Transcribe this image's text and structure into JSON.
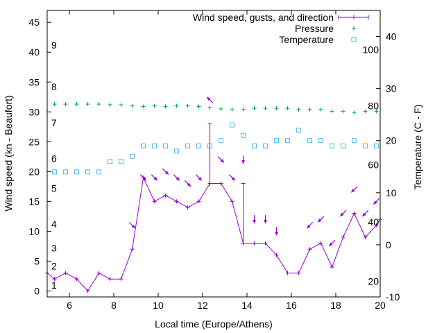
{
  "chart_data": {
    "type": "line",
    "xlabel": "Local time (Europe/Athens)",
    "ylabel": "Wind speed (kn - Beaufort)",
    "y2label": "Temperature (C - F)",
    "xlim": [
      5,
      20
    ],
    "ylim": [
      -1,
      47
    ],
    "y2lim": [
      -10,
      45
    ],
    "x_ticks": [
      6,
      8,
      10,
      12,
      14,
      16,
      18,
      20
    ],
    "y_ticks": [
      0,
      5,
      10,
      15,
      20,
      25,
      30,
      35,
      40,
      45
    ],
    "y2_ticks": [
      -10,
      0,
      10,
      20,
      30,
      40
    ],
    "beaufort_labels": [
      {
        "value": "1",
        "y": 1
      },
      {
        "value": "2",
        "y": 4.2
      },
      {
        "value": "3",
        "y": 7.2
      },
      {
        "value": "4",
        "y": 11.2
      },
      {
        "value": "5",
        "y": 17.2
      },
      {
        "value": "6",
        "y": 22.2
      },
      {
        "value": "7",
        "y": 28.2
      },
      {
        "value": "8",
        "y": 34.2
      },
      {
        "value": "9",
        "y": 41.2
      }
    ],
    "fahrenheit_labels": [
      {
        "value": "20",
        "y2": -7
      },
      {
        "value": "40",
        "y2": 4.4
      },
      {
        "value": "60",
        "y2": 15.4
      },
      {
        "value": "80",
        "y2": 26.7
      },
      {
        "value": "100",
        "y2": 37.5
      }
    ],
    "colors": {
      "wind": "#9400d3",
      "pressure": "#009e73",
      "temperature": "#56b4e9"
    },
    "series": [
      {
        "name": "Wind speed, gusts, and direction",
        "x": [
          5,
          5.33,
          5.83,
          6.33,
          6.83,
          7.33,
          7.83,
          8.33,
          8.83,
          9.33,
          9.83,
          10.33,
          10.83,
          11.33,
          11.83,
          12.33,
          12.83,
          13.33,
          13.83,
          14.33,
          14.83,
          15.33,
          15.83,
          16.33,
          16.83,
          17.33,
          17.83,
          18.33,
          18.83,
          19.33,
          19.83,
          20
        ],
        "y": [
          3,
          2,
          3,
          2,
          0,
          3,
          2,
          2,
          7,
          19,
          15,
          16,
          15,
          14,
          15,
          18,
          18,
          15,
          8,
          8,
          8,
          6,
          3,
          3,
          7,
          8,
          4,
          9,
          13,
          9,
          11,
          12
        ],
        "gusts": [
          {
            "x": 12.33,
            "low": 18,
            "high": 28
          },
          {
            "x": 13.83,
            "low": 8,
            "high": 18
          }
        ],
        "direction_arrows": [
          {
            "x": 8.83,
            "y": 11,
            "dir": "down-right"
          },
          {
            "x": 9.33,
            "y": 19,
            "dir": "down-right"
          },
          {
            "x": 9.83,
            "y": 19,
            "dir": "down-right"
          },
          {
            "x": 10.33,
            "y": 20,
            "dir": "down-right"
          },
          {
            "x": 10.83,
            "y": 19,
            "dir": "down-right"
          },
          {
            "x": 11.33,
            "y": 18,
            "dir": "down-right"
          },
          {
            "x": 11.83,
            "y": 19,
            "dir": "down-right"
          },
          {
            "x": 12.33,
            "y": 32,
            "dir": "up-left"
          },
          {
            "x": 12.83,
            "y": 22,
            "dir": "down-right"
          },
          {
            "x": 13.33,
            "y": 19,
            "dir": "down-right"
          },
          {
            "x": 13.83,
            "y": 22,
            "dir": "down"
          },
          {
            "x": 14.33,
            "y": 12,
            "dir": "down"
          },
          {
            "x": 14.83,
            "y": 12,
            "dir": "down"
          },
          {
            "x": 15.33,
            "y": 10,
            "dir": "down"
          },
          {
            "x": 16.83,
            "y": 11,
            "dir": "down-left"
          },
          {
            "x": 17.33,
            "y": 12,
            "dir": "down-left"
          },
          {
            "x": 17.83,
            "y": 8,
            "dir": "down-left"
          },
          {
            "x": 18.33,
            "y": 13,
            "dir": "down-left"
          },
          {
            "x": 18.83,
            "y": 17,
            "dir": "down-left"
          },
          {
            "x": 19.33,
            "y": 13,
            "dir": "down-left"
          },
          {
            "x": 19.83,
            "y": 15,
            "dir": "down-left"
          }
        ]
      },
      {
        "name": "Pressure",
        "x": [
          5.33,
          5.83,
          6.33,
          6.83,
          7.33,
          7.83,
          8.33,
          8.83,
          9.33,
          9.83,
          10.33,
          10.83,
          11.33,
          11.83,
          12.33,
          12.83,
          13.33,
          13.83,
          14.33,
          14.83,
          15.33,
          15.83,
          16.33,
          16.83,
          17.33,
          17.83,
          18.33,
          18.83,
          19.33,
          19.83
        ],
        "y": [
          31.3,
          31.3,
          31.3,
          31.3,
          31.3,
          31.2,
          31.2,
          31.0,
          30.9,
          31.0,
          30.9,
          31.0,
          31.0,
          30.9,
          30.7,
          30.5,
          30.4,
          30.4,
          30.6,
          30.6,
          30.6,
          30.6,
          30.4,
          30.4,
          30.4,
          30.1,
          30.1,
          29.9,
          30.1,
          30.1
        ]
      },
      {
        "name": "Temperature",
        "x": [
          5.33,
          5.83,
          6.33,
          6.83,
          7.33,
          7.83,
          8.33,
          8.83,
          9.33,
          9.83,
          10.33,
          10.83,
          11.33,
          11.83,
          12.33,
          12.83,
          13.33,
          13.83,
          14.33,
          14.83,
          15.33,
          15.83,
          16.33,
          16.83,
          17.33,
          17.83,
          18.33,
          18.83,
          19.33,
          19.83
        ],
        "y2": [
          14,
          14,
          14,
          14,
          14,
          16,
          16,
          17,
          19,
          19,
          19,
          18,
          19,
          19,
          19,
          20,
          23,
          21,
          19,
          19,
          20,
          20,
          22,
          20,
          20,
          19,
          19,
          20,
          19,
          19
        ]
      }
    ]
  }
}
